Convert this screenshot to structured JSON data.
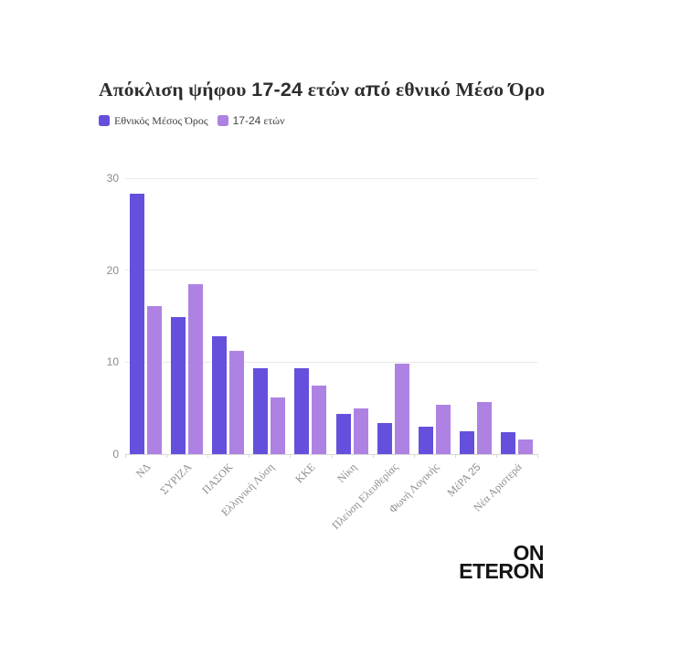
{
  "title": {
    "full": "Απόκλιση ψήφου 17-24 ετών από εθνικό Μέσο Όρο",
    "segments": [
      {
        "text": "Απόκλιση ψήφου ",
        "font": "serif"
      },
      {
        "text": "17-24",
        "font": "sans"
      },
      {
        "text": " ετών α",
        "font": "serif"
      },
      {
        "text": "π",
        "font": "sans"
      },
      {
        "text": "ό εθνικό Μέσο Όρο",
        "font": "serif"
      }
    ]
  },
  "legend": [
    {
      "label": "Εθνικός Μέσος Όρος",
      "color": "#6450dd"
    },
    {
      "label": "17-24 ετών",
      "color": "#ae82e2"
    }
  ],
  "chart_data": {
    "type": "bar",
    "title": "Απόκλιση ψήφου 17-24 ετών από εθνικό Μέσο Όρο",
    "categories": [
      "ΝΔ",
      "ΣΥΡΙΖΑ",
      "ΠΑΣΟΚ",
      "Ελληνική Λύση",
      "ΚΚΕ",
      "Νίκη",
      "Πλεύση Ελευθερίας",
      "Φωνή Λογικής",
      "ΜέΡΑ 25",
      "Νέα Αριστερά"
    ],
    "series": [
      {
        "name": "Εθνικός Μέσος Όρος",
        "color": "#6450dd",
        "values": [
          28.3,
          14.9,
          12.8,
          9.3,
          9.3,
          4.4,
          3.4,
          3.0,
          2.5,
          2.4
        ]
      },
      {
        "name": "17-24 ετών",
        "color": "#ae82e2",
        "values": [
          16.1,
          18.5,
          11.2,
          6.2,
          7.5,
          5.0,
          9.8,
          5.4,
          5.7,
          1.6
        ]
      }
    ],
    "xlabel": "",
    "ylabel": "",
    "ylim": [
      0,
      30
    ],
    "yticks": [
      0,
      10,
      20,
      30
    ],
    "grid": "horizontal",
    "legend_position": "top-left",
    "x_label_rotation": -45
  },
  "colors": {
    "background": "#ffffff",
    "title_text": "#2d2d2d",
    "axis_text": "#8b8b8b",
    "gridline": "#e9e9e9",
    "baseline": "#d7d7d7",
    "logo_text": "#141414"
  },
  "logo": {
    "line1": "ON",
    "line2": "ETERON"
  }
}
